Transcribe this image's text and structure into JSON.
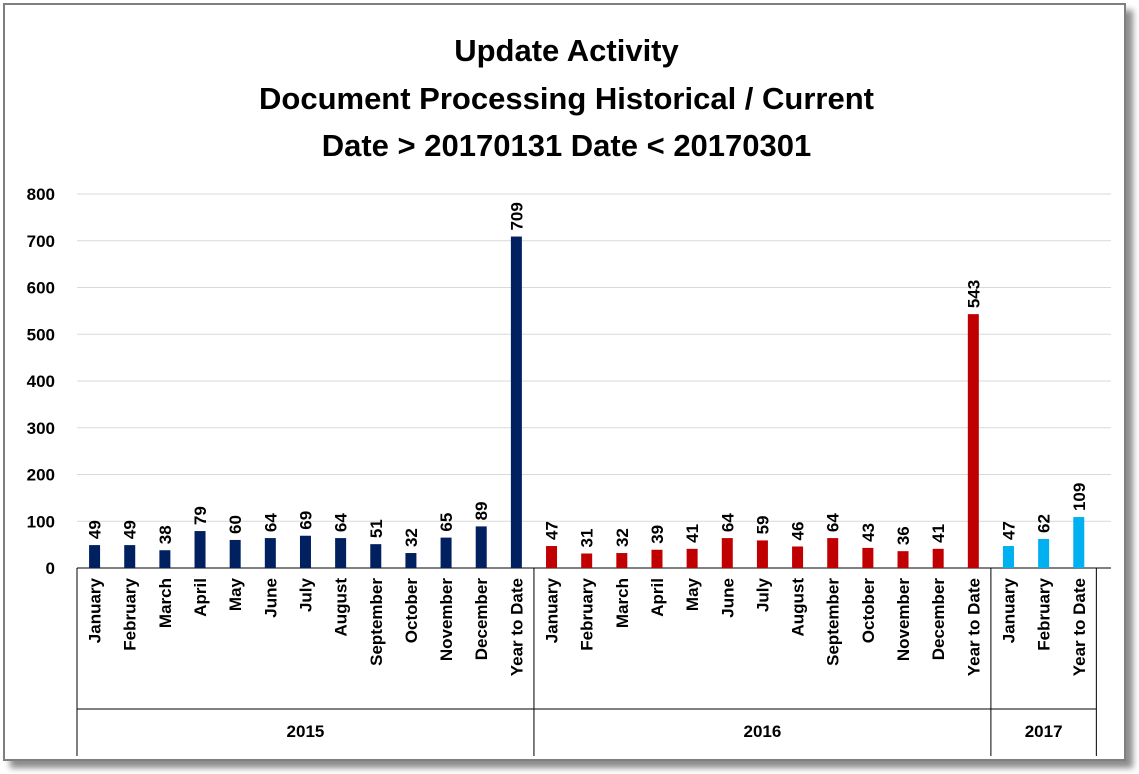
{
  "chart_data": {
    "type": "bar",
    "title": [
      "Update Activity",
      "Document Processing Historical / Current",
      "Date > 20170131 Date < 20170301"
    ],
    "ylim": [
      0,
      800
    ],
    "yticks": [
      0,
      100,
      200,
      300,
      400,
      500,
      600,
      700,
      800
    ],
    "grid": true,
    "legend": "none",
    "groups": [
      {
        "name": "2015",
        "color": "#002060",
        "categories": [
          "January",
          "February",
          "March",
          "April",
          "May",
          "June",
          "July",
          "August",
          "September",
          "October",
          "November",
          "December",
          "Year to Date"
        ],
        "values": [
          49,
          49,
          38,
          79,
          60,
          64,
          69,
          64,
          51,
          32,
          65,
          89,
          709
        ]
      },
      {
        "name": "2016",
        "color": "#c00000",
        "categories": [
          "January",
          "February",
          "March",
          "April",
          "May",
          "June",
          "July",
          "August",
          "September",
          "October",
          "November",
          "December",
          "Year to Date"
        ],
        "values": [
          47,
          31,
          32,
          39,
          41,
          64,
          59,
          46,
          64,
          43,
          36,
          41,
          543
        ]
      },
      {
        "name": "2017",
        "color": "#00b0f0",
        "categories": [
          "January",
          "February",
          "Year to Date"
        ],
        "values": [
          47,
          62,
          109
        ]
      }
    ]
  }
}
